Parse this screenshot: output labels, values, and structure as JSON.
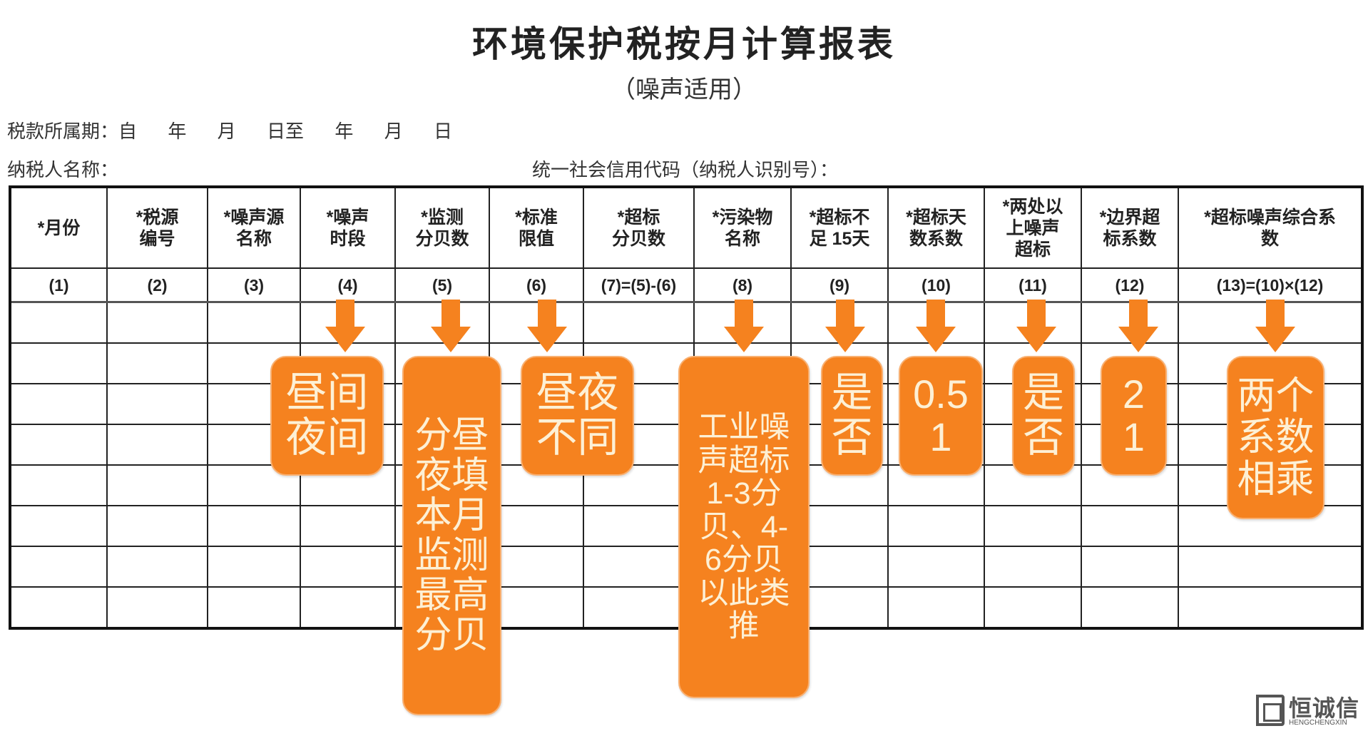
{
  "title": "环境保护税按月计算报表",
  "subtitle": "（噪声适用）",
  "period_line": "税款所属期：自      年      月      日至      年      月      日",
  "taxpayer_label": "纳税人名称：",
  "credit_code_label": "统一社会信用代码（纳税人识别号）：",
  "table": {
    "headers": [
      "*月份",
      "*税源\n编号",
      "*噪声源\n名称",
      "*噪声\n时段",
      "*监测\n分贝数",
      "*标准\n限值",
      "*超标\n分贝数",
      "*污染物\n名称",
      "*超标不\n足 15天",
      "*超标天\n数系数",
      "*两处以\n上噪声\n超标",
      "*边界超\n标系数",
      "*超标噪声综合系\n数"
    ],
    "index_row": [
      "(1)",
      "(2)",
      "(3)",
      "(4)",
      "(5)",
      "(6)",
      "(7)=(5)-(6)",
      "(8)",
      "(9)",
      "(10)",
      "(11)",
      "(12)",
      "(13)=(10)×(12)"
    ],
    "empty_rows": 8
  },
  "callouts": [
    {
      "column": "(4)",
      "text": "昼间\n夜间"
    },
    {
      "column": "(5)",
      "text": "分昼\n夜填\n本月\n监测\n最高\n分贝"
    },
    {
      "column": "(6)",
      "text": "昼夜\n不同"
    },
    {
      "column": "(8)",
      "text": "工业噪\n声超标\n1-3分\n贝、4-\n6分贝\n以此类\n推"
    },
    {
      "column": "(9)",
      "text": "是\n否"
    },
    {
      "column": "(10)",
      "text": "0.5\n1"
    },
    {
      "column": "(11)",
      "text": "是\n否"
    },
    {
      "column": "(12)",
      "text": "2\n1"
    },
    {
      "column": "(13)",
      "text": "两个\n系数\n相乘"
    }
  ],
  "colors": {
    "callout": "#f5821f",
    "callout_text": "#fdf0d5",
    "border": "#111111"
  },
  "logo": {
    "cn": "恒诚信",
    "en": "HENGCHENGXIN"
  }
}
